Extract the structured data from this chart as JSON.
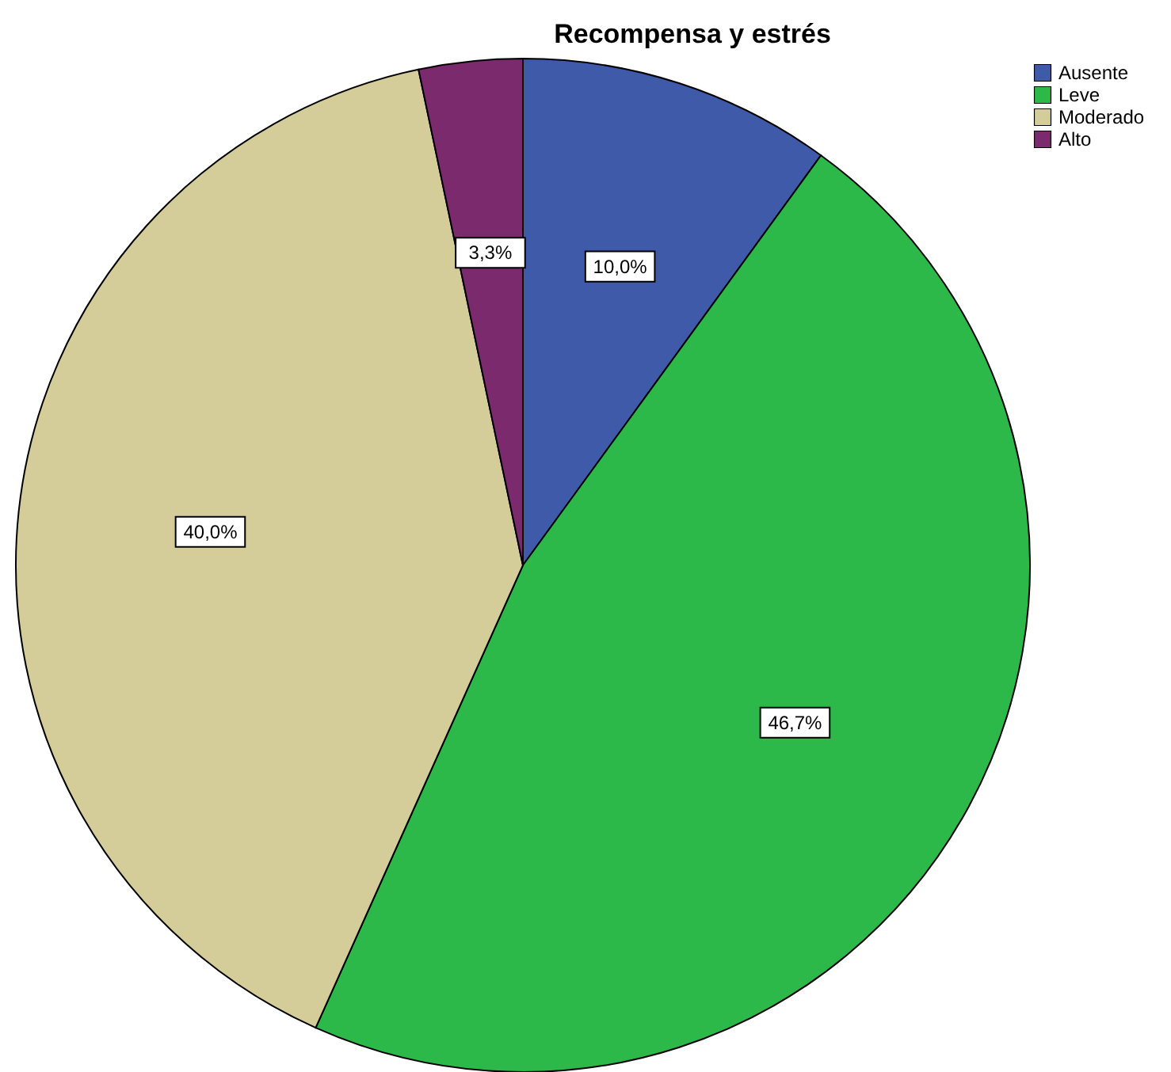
{
  "chart_data": {
    "type": "pie",
    "title": "Recompensa y estrés",
    "categories": [
      "Ausente",
      "Leve",
      "Moderado",
      "Alto"
    ],
    "values": [
      10.0,
      46.7,
      40.0,
      3.3
    ],
    "value_labels": [
      "10,0%",
      "46,7%",
      "40,0%",
      "3,3%"
    ],
    "colors": [
      "#3f5aa9",
      "#2db84a",
      "#d4cc99",
      "#7b2a6e"
    ],
    "legend": "top right"
  }
}
